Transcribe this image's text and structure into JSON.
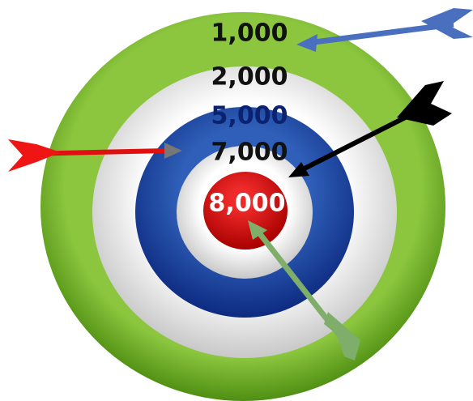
{
  "rings": [
    {
      "label": "1,000"
    },
    {
      "label": "2,000"
    },
    {
      "label": "5,000"
    },
    {
      "label": "7,000"
    },
    {
      "label": "8,000"
    }
  ]
}
